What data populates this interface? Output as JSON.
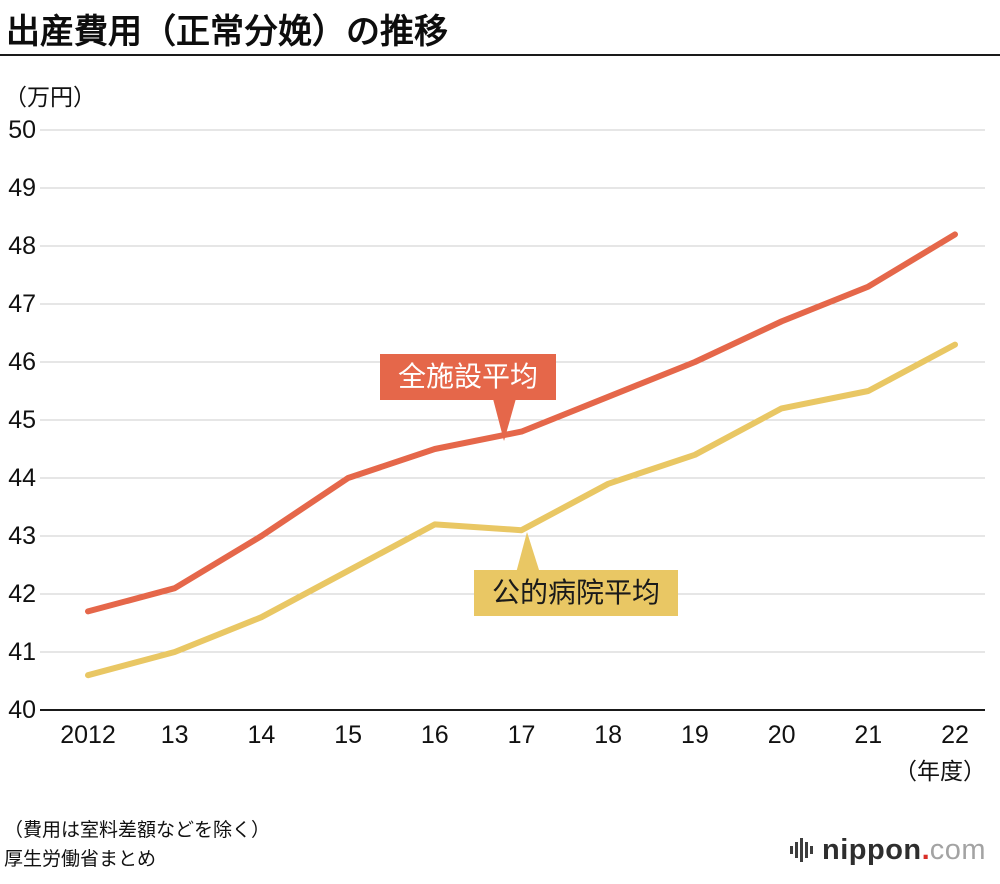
{
  "title": "出産費用（正常分娩）の推移",
  "y_axis_unit": "（万円）",
  "x_axis_unit": "（年度）",
  "notes": [
    "（費用は室料差額などを除く）",
    "厚生労働省まとめ"
  ],
  "logo": {
    "name": "nippon",
    "dot": ".",
    "tld": "com"
  },
  "chart_data": {
    "type": "line",
    "title": "出産費用（正常分娩）の推移",
    "xlabel": "年度",
    "ylabel": "万円",
    "categories": [
      "2012",
      "13",
      "14",
      "15",
      "16",
      "17",
      "18",
      "19",
      "20",
      "21",
      "22"
    ],
    "series": [
      {
        "name": "全施設平均",
        "color": "#e5674a",
        "label_text_color": "#ffffff",
        "values": [
          41.7,
          42.1,
          43.0,
          44.0,
          44.5,
          44.8,
          45.4,
          46.0,
          46.7,
          47.3,
          48.2
        ]
      },
      {
        "name": "公的病院平均",
        "color": "#e9c764",
        "label_text_color": "#1a1a1a",
        "values": [
          40.6,
          41.0,
          41.6,
          42.4,
          43.2,
          43.1,
          43.9,
          44.4,
          45.2,
          45.5,
          46.3
        ]
      }
    ],
    "ylim": [
      40,
      50
    ],
    "y_ticks": [
      40,
      41,
      42,
      43,
      44,
      45,
      46,
      47,
      48,
      49,
      50
    ],
    "grid": true,
    "legend_position": "inline-callouts"
  }
}
